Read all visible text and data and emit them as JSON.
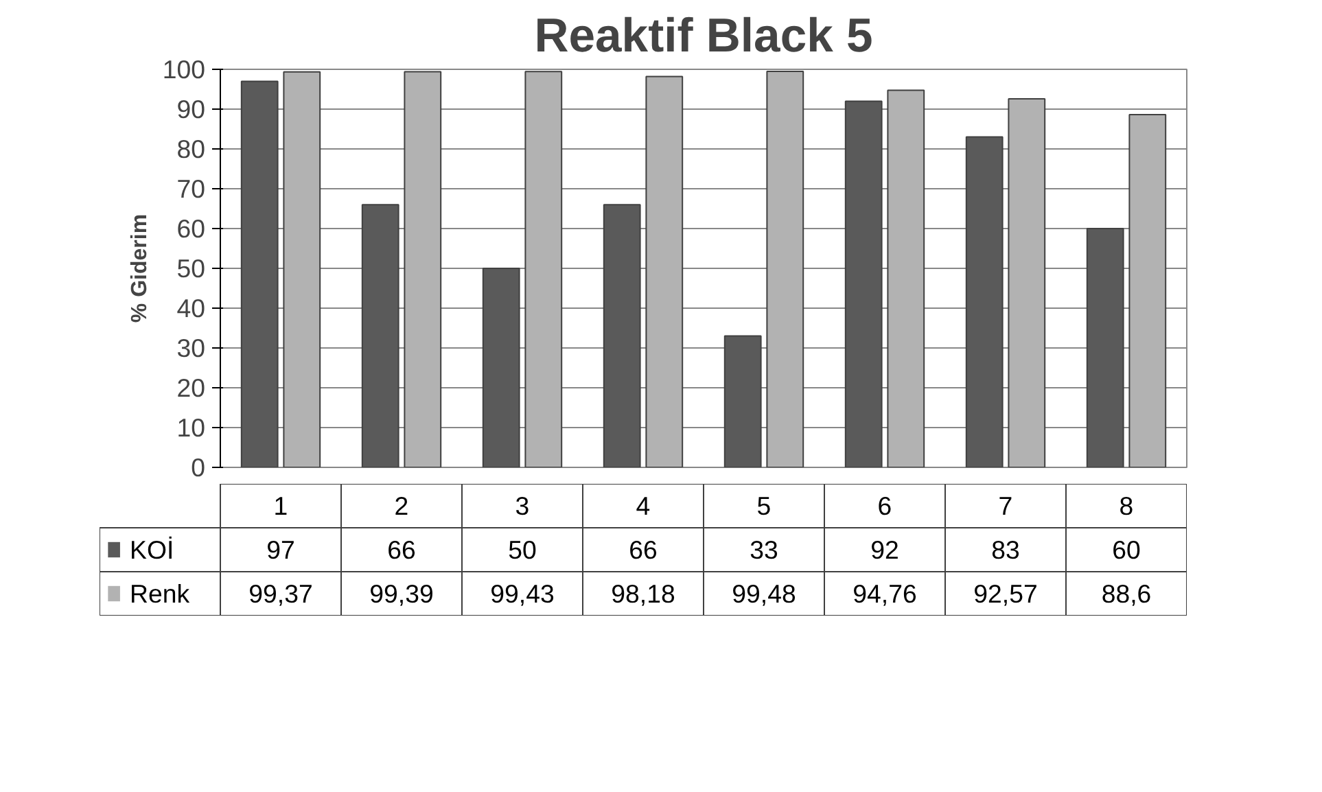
{
  "chart_data": {
    "type": "bar",
    "title": "Reaktif Black 5",
    "ylabel": "% Giderim",
    "categories": [
      "1",
      "2",
      "3",
      "4",
      "5",
      "6",
      "7",
      "8"
    ],
    "series": [
      {
        "name": "KOİ",
        "color": "#5a5a5a",
        "values": [
          97,
          66,
          50,
          66,
          33,
          92,
          83,
          60
        ],
        "value_labels": [
          "97",
          "66",
          "50",
          "66",
          "33",
          "92",
          "83",
          "60"
        ]
      },
      {
        "name": "Renk",
        "color": "#b2b2b2",
        "values": [
          99.37,
          99.39,
          99.43,
          98.18,
          99.48,
          94.76,
          92.57,
          88.6
        ],
        "value_labels": [
          "99,37",
          "99,39",
          "99,43",
          "98,18",
          "99,48",
          "94,76",
          "92,57",
          "88,6"
        ]
      }
    ],
    "ylim": [
      0,
      100
    ],
    "yticks": [
      0,
      10,
      20,
      30,
      40,
      50,
      60,
      70,
      80,
      90,
      100
    ],
    "grid": "y",
    "legend": "bottom"
  }
}
